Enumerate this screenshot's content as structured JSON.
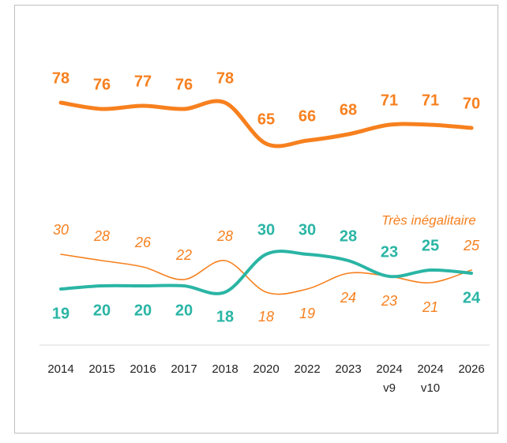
{
  "chart_data": {
    "type": "line",
    "categories": [
      "2014",
      "2015",
      "2016",
      "2017",
      "2018",
      "2020",
      "2022",
      "2023",
      "2024 v9",
      "2024 v10",
      "2026"
    ],
    "series": [
      {
        "color": "#f7801e",
        "values": [
          78,
          76,
          77,
          76,
          78,
          65,
          66,
          68,
          71,
          71,
          70
        ]
      },
      {
        "name": "Très inégalitaire",
        "color": "#f7801e",
        "values": [
          30,
          28,
          26,
          22,
          28,
          18,
          19,
          24,
          23,
          21,
          25
        ]
      },
      {
        "color": "#2ab5a5",
        "values": [
          19,
          20,
          20,
          20,
          18,
          30,
          30,
          28,
          23,
          25,
          24
        ]
      }
    ],
    "ylim": [
      0,
      100
    ]
  }
}
